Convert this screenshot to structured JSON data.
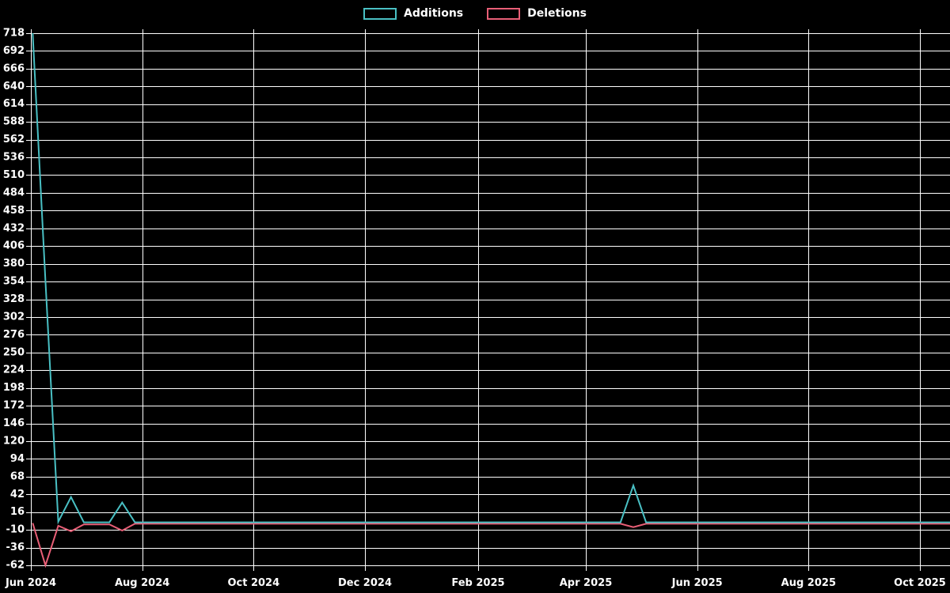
{
  "chart_data": {
    "type": "line",
    "title": "",
    "background_color": "#000000",
    "grid": "on",
    "grid_color": "#ffffff",
    "text_color": "#ffffff",
    "legend_position": "top-center",
    "legend": [
      {
        "label": "Additions",
        "color": "#49c0c4"
      },
      {
        "label": "Deletions",
        "color": "#e95f77"
      }
    ],
    "y_axis": {
      "min": -62,
      "max": 718,
      "tick_step": 26,
      "ticks": [
        718,
        692,
        666,
        640,
        614,
        588,
        562,
        536,
        510,
        484,
        458,
        432,
        406,
        380,
        354,
        328,
        302,
        276,
        250,
        224,
        198,
        172,
        146,
        120,
        94,
        68,
        42,
        16,
        -10,
        -36,
        -62
      ]
    },
    "x_axis": {
      "start_date": "2024-06-01",
      "end_date": "2025-10-01",
      "ticks": [
        {
          "date": "2024-06-01",
          "label": "Jun 2024"
        },
        {
          "date": "2024-08-01",
          "label": "Aug 2024"
        },
        {
          "date": "2024-10-01",
          "label": "Oct 2024"
        },
        {
          "date": "2024-12-01",
          "label": "Dec 2024"
        },
        {
          "date": "2025-02-01",
          "label": "Feb 2025"
        },
        {
          "date": "2025-04-01",
          "label": "Apr 2025"
        },
        {
          "date": "2025-06-01",
          "label": "Jun 2025"
        },
        {
          "date": "2025-08-01",
          "label": "Aug 2025"
        },
        {
          "date": "2025-10-01",
          "label": "Oct 2025"
        }
      ]
    },
    "series": [
      {
        "name": "Additions",
        "color": "#49c0c4",
        "points": [
          [
            "2024-06-02",
            718
          ],
          [
            "2024-06-09",
            355
          ],
          [
            "2024-06-16",
            2
          ],
          [
            "2024-06-23",
            38
          ],
          [
            "2024-06-30",
            1
          ],
          [
            "2024-07-14",
            1
          ],
          [
            "2024-07-21",
            30
          ],
          [
            "2024-07-28",
            1
          ],
          [
            "2025-04-20",
            1
          ],
          [
            "2025-04-27",
            55
          ],
          [
            "2025-05-04",
            1
          ],
          [
            "2025-10-18",
            1
          ]
        ]
      },
      {
        "name": "Deletions",
        "color": "#e95f77",
        "points": [
          [
            "2024-06-02",
            0
          ],
          [
            "2024-06-09",
            -62
          ],
          [
            "2024-06-16",
            -4
          ],
          [
            "2024-06-23",
            -12
          ],
          [
            "2024-06-30",
            -2
          ],
          [
            "2024-07-14",
            -2
          ],
          [
            "2024-07-21",
            -11
          ],
          [
            "2024-07-28",
            -1
          ],
          [
            "2025-04-20",
            -1
          ],
          [
            "2025-04-27",
            -6
          ],
          [
            "2025-05-04",
            -1
          ],
          [
            "2025-10-18",
            -1
          ]
        ]
      }
    ]
  }
}
